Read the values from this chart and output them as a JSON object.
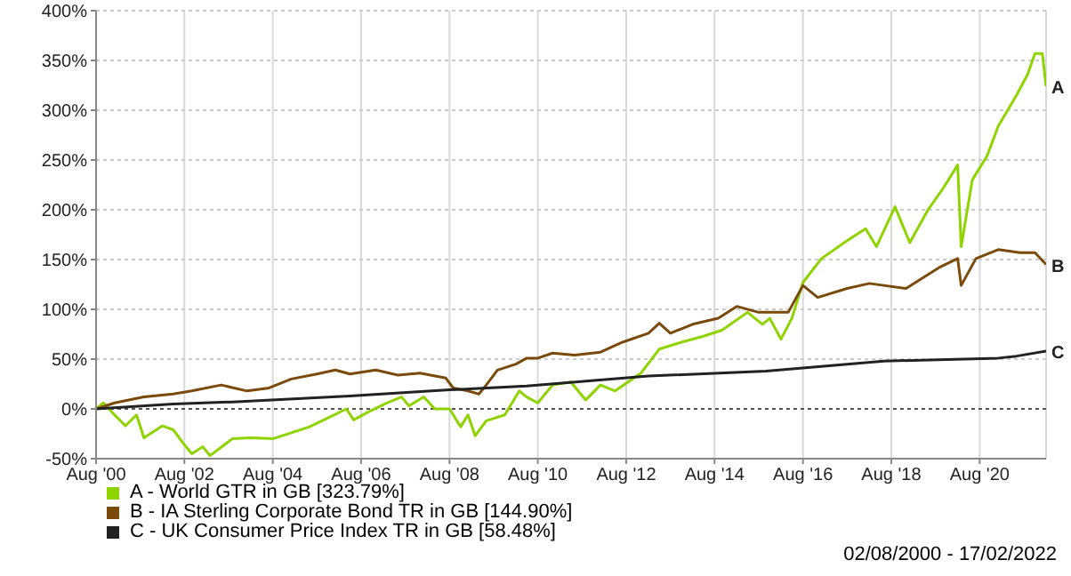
{
  "chart_data": {
    "type": "line",
    "xlim": [
      "2000-08",
      "2022-02"
    ],
    "ylim": [
      -50,
      400
    ],
    "xticks": [
      {
        "value": "2000-08",
        "label": "Aug '00"
      },
      {
        "value": "2002-08",
        "label": "Aug '02"
      },
      {
        "value": "2004-08",
        "label": "Aug '04"
      },
      {
        "value": "2006-08",
        "label": "Aug '06"
      },
      {
        "value": "2008-08",
        "label": "Aug '08"
      },
      {
        "value": "2010-08",
        "label": "Aug '10"
      },
      {
        "value": "2012-08",
        "label": "Aug '12"
      },
      {
        "value": "2014-08",
        "label": "Aug '14"
      },
      {
        "value": "2016-08",
        "label": "Aug '16"
      },
      {
        "value": "2018-08",
        "label": "Aug '18"
      },
      {
        "value": "2020-08",
        "label": "Aug '20"
      }
    ],
    "yticks": [
      {
        "value": -50,
        "label": "-50%"
      },
      {
        "value": 0,
        "label": "0%"
      },
      {
        "value": 50,
        "label": "50%"
      },
      {
        "value": 100,
        "label": "100%"
      },
      {
        "value": 150,
        "label": "150%"
      },
      {
        "value": 200,
        "label": "200%"
      },
      {
        "value": 250,
        "label": "250%"
      },
      {
        "value": 300,
        "label": "300%"
      },
      {
        "value": 350,
        "label": "350%"
      },
      {
        "value": 400,
        "label": "400%"
      }
    ],
    "grid": true,
    "legend": "bottom left",
    "marker": "none",
    "line_style": "solid",
    "ref_lines": [
      {
        "axis": "y",
        "value": 0,
        "color": "#555555",
        "line_style": "dotted"
      }
    ],
    "series": [
      {
        "name": "A - World GTR in GB [323.79%]",
        "color": "#8fd400",
        "x": [
          "2000-08",
          "2000-10",
          "2001-01",
          "2001-04",
          "2001-07",
          "2001-09",
          "2002-02",
          "2002-05",
          "2002-08",
          "2002-10",
          "2003-01",
          "2003-03",
          "2003-09",
          "2004-02",
          "2004-08",
          "2005-01",
          "2005-06",
          "2005-11",
          "2006-04",
          "2006-06",
          "2006-10",
          "2007-03",
          "2007-07",
          "2007-09",
          "2008-01",
          "2008-04",
          "2008-08",
          "2008-11",
          "2009-01",
          "2009-03",
          "2009-06",
          "2009-11",
          "2010-03",
          "2010-05",
          "2010-08",
          "2010-12",
          "2011-05",
          "2011-09",
          "2012-01",
          "2012-05",
          "2012-12",
          "2013-05",
          "2013-11",
          "2014-05",
          "2014-10",
          "2015-05",
          "2015-09",
          "2015-11",
          "2016-02",
          "2016-05",
          "2016-08",
          "2017-01",
          "2017-08",
          "2018-01",
          "2018-04",
          "2018-09",
          "2019-01",
          "2019-06",
          "2019-10",
          "2020-02",
          "2020-03",
          "2020-06",
          "2020-10",
          "2021-01",
          "2021-06",
          "2021-09",
          "2021-11",
          "2022-01",
          "2022-02"
        ],
        "values": [
          0,
          6,
          -6,
          -17,
          -6,
          -29,
          -17,
          -21,
          -36,
          -45,
          -38,
          -47,
          -30,
          -29,
          -30,
          -24,
          -18,
          -9,
          0,
          -11,
          -3,
          6,
          12,
          3,
          12,
          0,
          0,
          -18,
          -6,
          -27,
          -12,
          -6,
          18,
          12,
          6,
          24,
          27,
          9,
          24,
          18,
          36,
          60,
          67,
          73,
          79,
          97,
          85,
          91,
          70,
          91,
          127,
          151,
          169,
          181,
          163,
          203,
          167,
          200,
          221,
          245,
          163,
          230,
          254,
          284,
          315,
          336,
          357,
          357,
          324
        ]
      },
      {
        "name": "B - IA Sterling Corporate Bond TR in GB [144.90%]",
        "color": "#7a4a0a",
        "x": [
          "2000-08",
          "2001-01",
          "2001-09",
          "2002-05",
          "2002-10",
          "2003-06",
          "2004-01",
          "2004-07",
          "2005-01",
          "2005-08",
          "2006-01",
          "2006-05",
          "2006-12",
          "2007-06",
          "2007-12",
          "2008-07",
          "2008-09",
          "2009-01",
          "2009-04",
          "2009-06",
          "2009-09",
          "2010-02",
          "2010-05",
          "2010-08",
          "2010-12",
          "2011-06",
          "2012-01",
          "2012-07",
          "2013-02",
          "2013-05",
          "2013-08",
          "2014-02",
          "2014-09",
          "2015-02",
          "2015-08",
          "2016-04",
          "2016-08",
          "2016-12",
          "2017-08",
          "2018-02",
          "2018-12",
          "2019-09",
          "2020-02",
          "2020-03",
          "2020-07",
          "2021-01",
          "2021-07",
          "2021-11",
          "2022-02"
        ],
        "values": [
          0,
          6,
          12,
          15,
          18,
          24,
          18,
          21,
          30,
          35,
          39,
          35,
          39,
          34,
          36,
          31,
          21,
          18,
          15,
          24,
          39,
          45,
          51,
          51,
          56,
          54,
          57,
          67,
          76,
          86,
          76,
          85,
          91,
          103,
          97,
          97,
          124,
          112,
          121,
          126,
          121,
          142,
          151,
          124,
          151,
          160,
          157,
          157,
          145
        ]
      },
      {
        "name": "C - UK Consumer Price Index TR in GB [58.48%]",
        "color": "#222222",
        "x": [
          "2000-08",
          "2002-05",
          "2003-09",
          "2006-05",
          "2008-07",
          "2010-05",
          "2013-02",
          "2015-10",
          "2018-06",
          "2021-01",
          "2021-06",
          "2022-02"
        ],
        "values": [
          0,
          5,
          7,
          13,
          19,
          23,
          33,
          38,
          48,
          51,
          53,
          58
        ]
      }
    ],
    "annotations": [
      {
        "text": "A",
        "x": "2022-02",
        "y": 324
      },
      {
        "text": "B",
        "x": "2022-02",
        "y": 145
      },
      {
        "text": "C",
        "x": "2022-02",
        "y": 58
      },
      "02/08/2000 - 17/02/2022"
    ]
  }
}
